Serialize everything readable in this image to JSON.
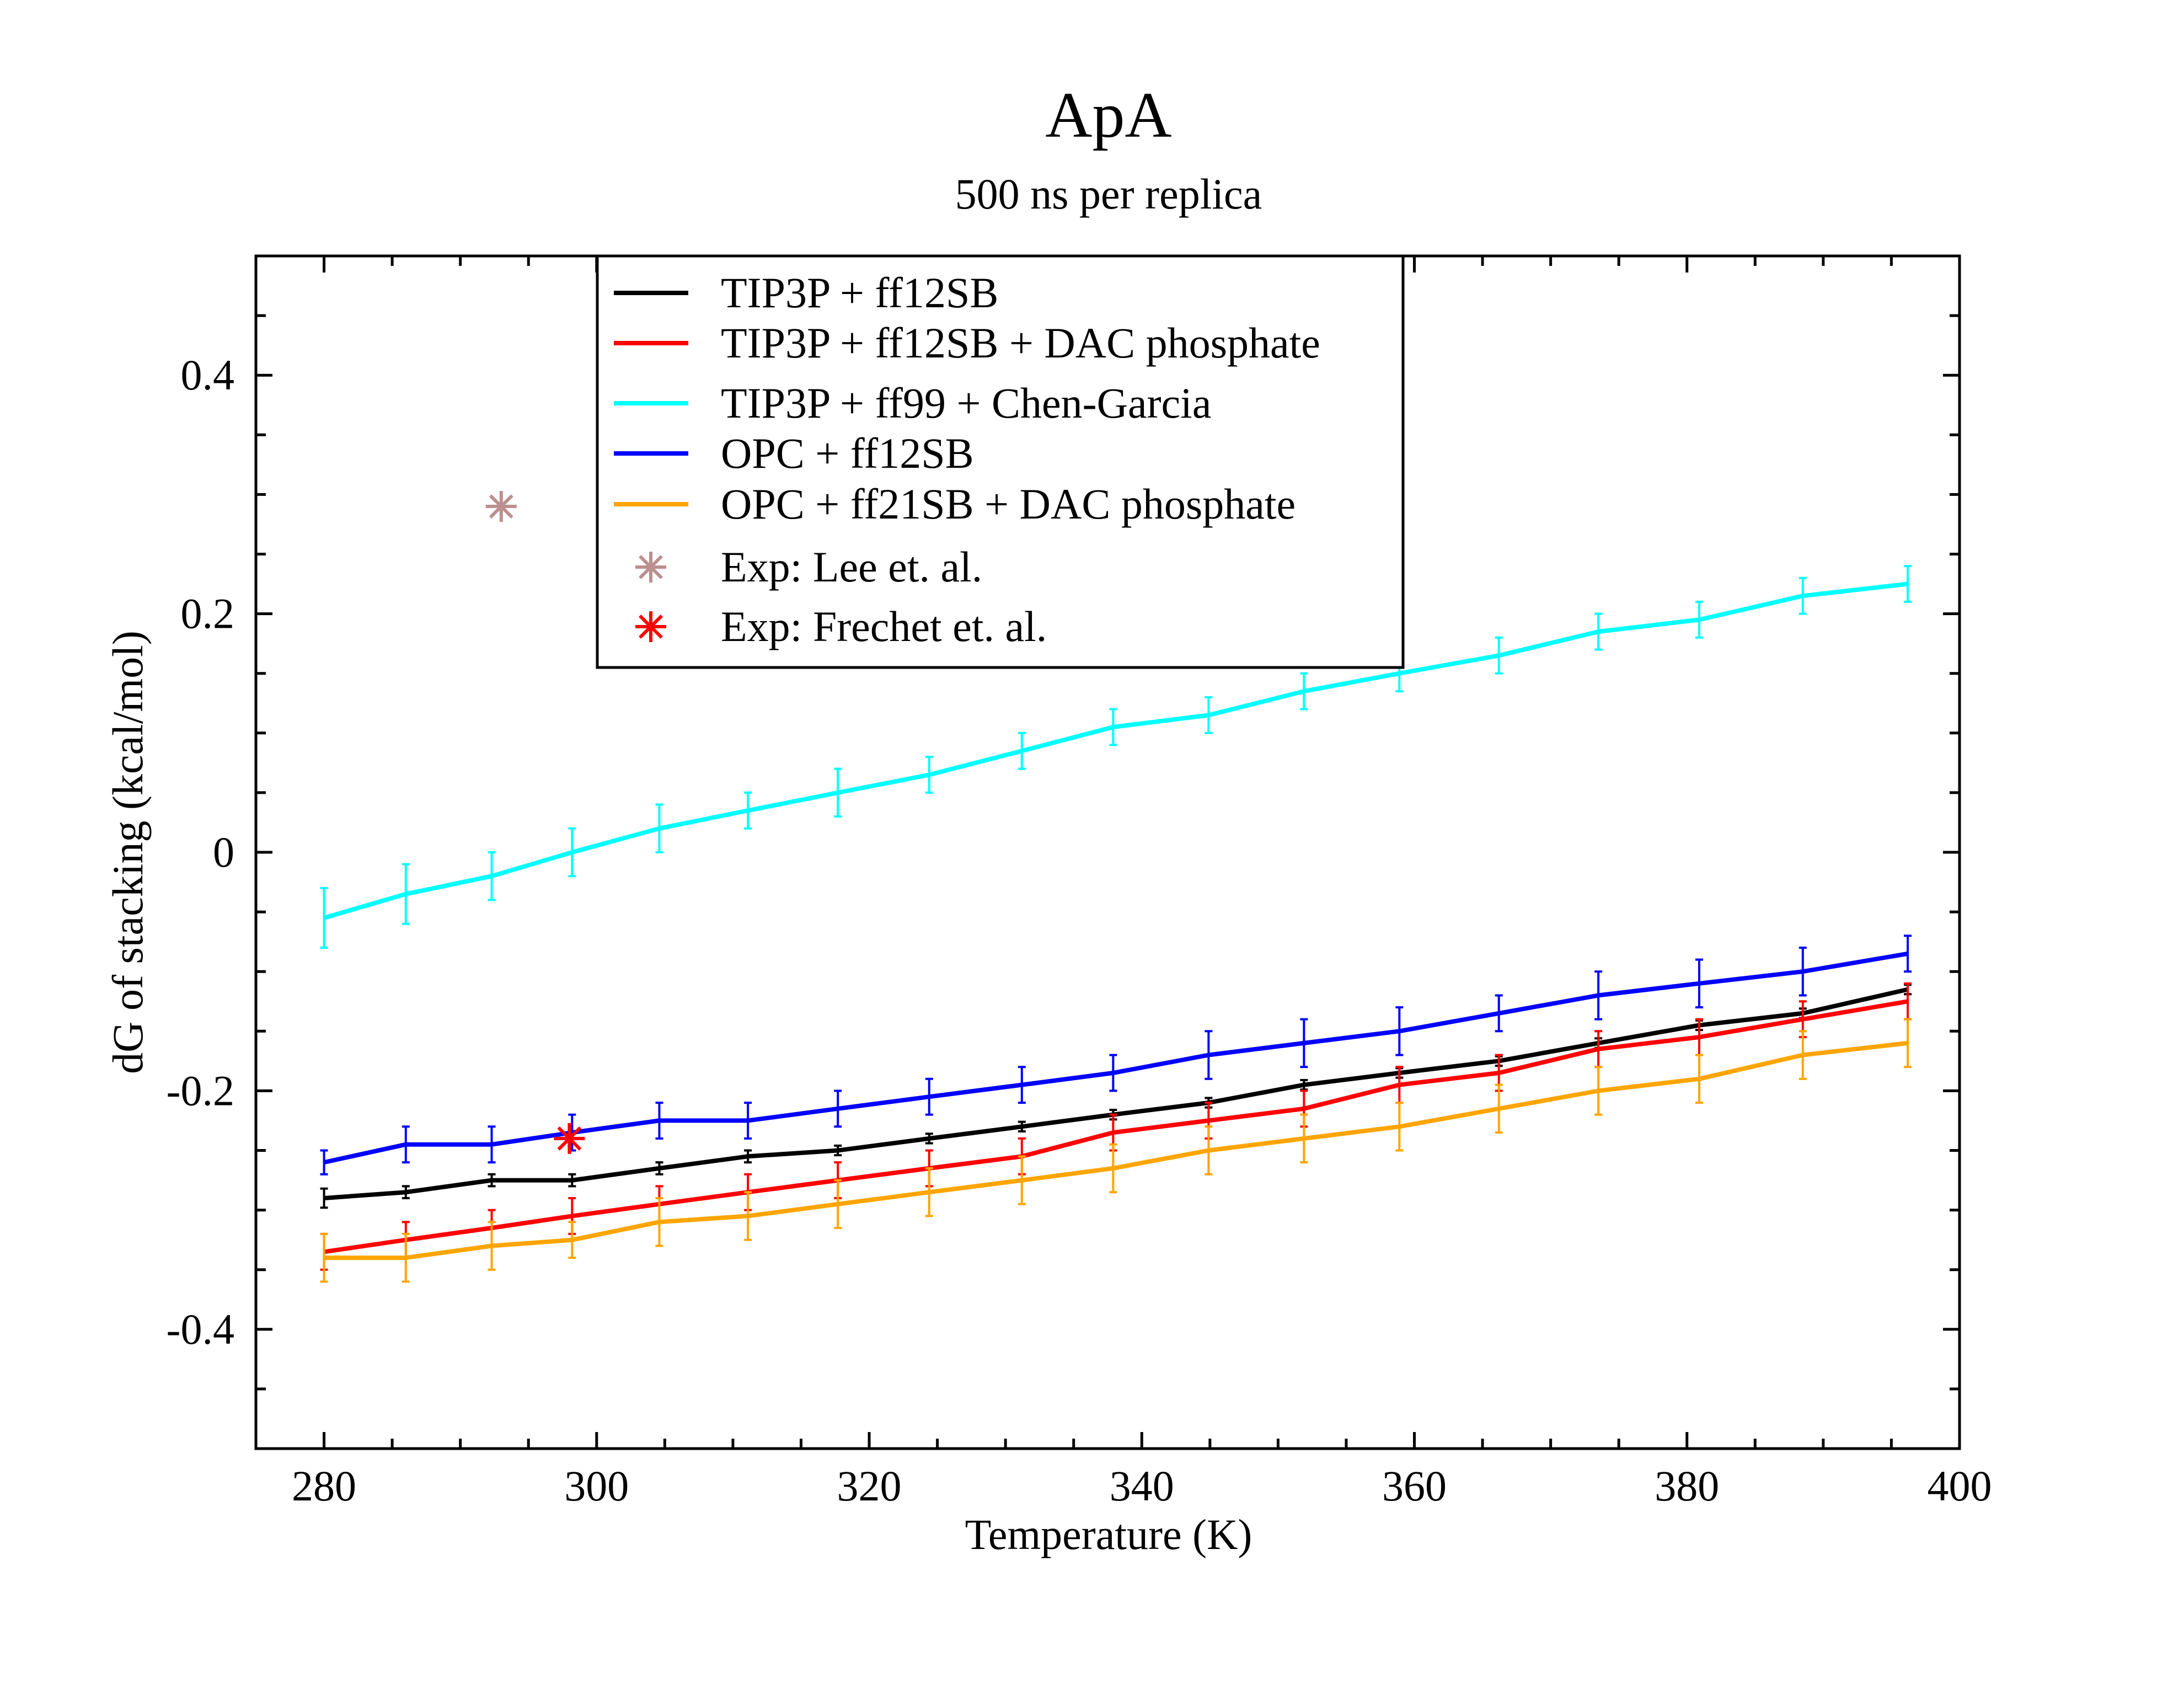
{
  "chart_data": {
    "type": "line",
    "title": "ApA",
    "subtitle": "500 ns per replica",
    "xlabel": "Temperature (K)",
    "ylabel": "dG of stacking (kcal/mol)",
    "xlim": [
      275,
      400
    ],
    "ylim": [
      -0.5,
      0.5
    ],
    "x_ticks": [
      280,
      300,
      320,
      340,
      360,
      380,
      400
    ],
    "x_tick_labels": [
      "280",
      "300",
      "320",
      "340",
      "360",
      "380",
      "400"
    ],
    "y_ticks": [
      -0.4,
      -0.2,
      0,
      0.2,
      0.4
    ],
    "y_tick_labels": [
      "-0.4",
      "-0.2",
      "0",
      "0.2",
      "0.4"
    ],
    "grid": false,
    "legend_position": "top-center",
    "x": [
      280,
      286,
      292.3,
      298.2,
      304.6,
      311.1,
      317.7,
      324.4,
      331.2,
      337.9,
      344.9,
      351.9,
      358.9,
      366.2,
      373.5,
      380.9,
      388.5,
      396.2
    ],
    "series": [
      {
        "name": "TIP3P + ff12SB",
        "color": "#000000",
        "values": [
          -0.29,
          -0.285,
          -0.275,
          -0.275,
          -0.265,
          -0.255,
          -0.25,
          -0.24,
          -0.23,
          -0.22,
          -0.21,
          -0.195,
          -0.185,
          -0.175,
          -0.16,
          -0.145,
          -0.135,
          -0.115
        ],
        "errors": [
          0.008,
          0.005,
          0.005,
          0.005,
          0.005,
          0.005,
          0.004,
          0.004,
          0.004,
          0.004,
          0.004,
          0.004,
          0.004,
          0.004,
          0.004,
          0.004,
          0.004,
          0.004
        ]
      },
      {
        "name": "TIP3P + ff12SB + DAC phosphate",
        "color": "#ff0000",
        "values": [
          -0.335,
          -0.325,
          -0.315,
          -0.305,
          -0.295,
          -0.285,
          -0.275,
          -0.265,
          -0.255,
          -0.235,
          -0.225,
          -0.215,
          -0.195,
          -0.185,
          -0.165,
          -0.155,
          -0.14,
          -0.125
        ],
        "errors": [
          0.015,
          0.015,
          0.015,
          0.015,
          0.015,
          0.015,
          0.015,
          0.015,
          0.015,
          0.015,
          0.015,
          0.015,
          0.015,
          0.015,
          0.015,
          0.015,
          0.015,
          0.015
        ]
      },
      {
        "name": "TIP3P + ff99 + Chen-Garcia",
        "color": "#00ffff",
        "values": [
          -0.055,
          -0.035,
          -0.02,
          0.0,
          0.02,
          0.035,
          0.05,
          0.065,
          0.085,
          0.105,
          0.115,
          0.135,
          0.15,
          0.165,
          0.185,
          0.195,
          0.215,
          0.225
        ],
        "errors": [
          0.025,
          0.025,
          0.02,
          0.02,
          0.02,
          0.015,
          0.02,
          0.015,
          0.015,
          0.015,
          0.015,
          0.015,
          0.015,
          0.015,
          0.015,
          0.015,
          0.015,
          0.015
        ]
      },
      {
        "name": "OPC + ff12SB",
        "color": "#0000ff",
        "values": [
          -0.26,
          -0.245,
          -0.245,
          -0.235,
          -0.225,
          -0.225,
          -0.215,
          -0.205,
          -0.195,
          -0.185,
          -0.17,
          -0.16,
          -0.15,
          -0.135,
          -0.12,
          -0.11,
          -0.1,
          -0.085
        ],
        "errors": [
          0.01,
          0.015,
          0.015,
          0.015,
          0.015,
          0.015,
          0.015,
          0.015,
          0.015,
          0.015,
          0.02,
          0.02,
          0.02,
          0.015,
          0.02,
          0.02,
          0.02,
          0.015
        ]
      },
      {
        "name": "OPC + ff21SB + DAC phosphate",
        "color": "#ffa500",
        "values": [
          -0.34,
          -0.34,
          -0.33,
          -0.325,
          -0.31,
          -0.305,
          -0.295,
          -0.285,
          -0.275,
          -0.265,
          -0.25,
          -0.24,
          -0.23,
          -0.215,
          -0.2,
          -0.19,
          -0.17,
          -0.16
        ],
        "errors": [
          0.02,
          0.02,
          0.02,
          0.015,
          0.02,
          0.02,
          0.02,
          0.02,
          0.02,
          0.02,
          0.02,
          0.02,
          0.02,
          0.02,
          0.02,
          0.02,
          0.02,
          0.02
        ]
      }
    ],
    "markers": [
      {
        "name": "Exp: Lee et. al.",
        "color": "#bc8f8f",
        "x": 293,
        "y": 0.29
      },
      {
        "name": "Exp: Frechet et. al.",
        "color": "#ff0000",
        "x": 298,
        "y": -0.24
      }
    ]
  }
}
